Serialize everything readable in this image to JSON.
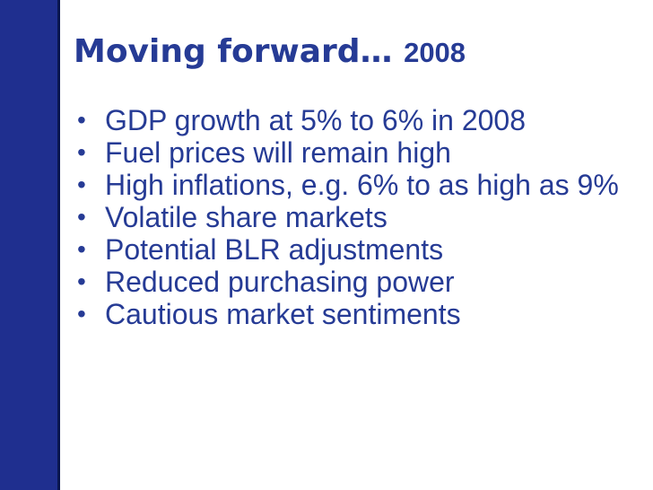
{
  "slide": {
    "title": "Moving forward…",
    "title_year": "2008",
    "bullets": [
      "GDP growth at 5% to 6% in 2008",
      "Fuel prices will remain high",
      "High inflations, e.g. 6% to as high as 9%",
      "Volatile share markets",
      "Potential BLR adjustments",
      "Reduced purchasing power",
      "Cautious market sentiments"
    ],
    "bullet_glyph": "•"
  },
  "colors": {
    "text": "#263b95",
    "band": "#1f2f8f",
    "band_edge": "#0a164f",
    "background": "#ffffff"
  }
}
